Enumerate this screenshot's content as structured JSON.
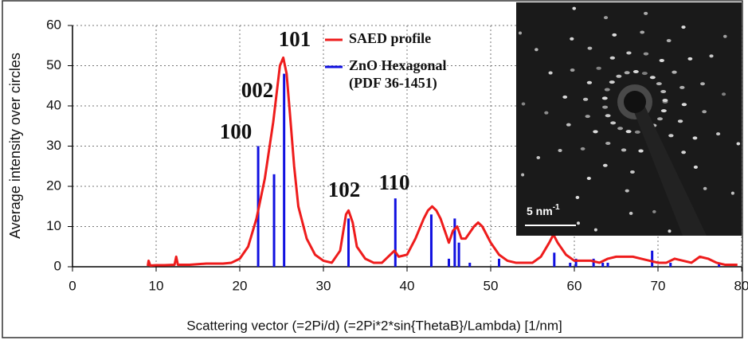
{
  "chart_data": {
    "type": "line",
    "xlabel": "Scattering vector (=2Pi/d) (=2Pi*2*sin{ThetaB}/Lambda) [1/nm]",
    "ylabel": "Average intensity over circles",
    "xlim": [
      0,
      80
    ],
    "xticks": [
      0,
      10,
      20,
      30,
      40,
      50,
      60,
      70,
      80
    ],
    "ylim": [
      0,
      60
    ],
    "yticks": [
      0,
      10,
      20,
      30,
      40,
      50,
      60
    ],
    "grid": true,
    "annotations": [
      "101",
      "002",
      "100",
      "102",
      "110"
    ],
    "inset_scale_label": "5 nm",
    "inset_scale_exponent": "-1",
    "series": [
      {
        "name": "SAED profile",
        "color": "#ee1c1c",
        "type": "line",
        "x": [
          9,
          9.1,
          9.3,
          10,
          11,
          12.2,
          12.4,
          12.6,
          14,
          16,
          18,
          19,
          20,
          21,
          22,
          23,
          24,
          24.8,
          25.2,
          25.6,
          26,
          26.5,
          27,
          28,
          29,
          30,
          31,
          32,
          32.7,
          33,
          33.5,
          34,
          35,
          36,
          37,
          38,
          38.5,
          39,
          40,
          41,
          42,
          42.5,
          43,
          43.5,
          44,
          44.5,
          45,
          45.5,
          46,
          46.5,
          47,
          48,
          48.5,
          49,
          50,
          51,
          52,
          53,
          55,
          56,
          57,
          57.5,
          58,
          59,
          60,
          62,
          63,
          64,
          65,
          66,
          67,
          68,
          69,
          70,
          71,
          72,
          73,
          74,
          75,
          76,
          77,
          78,
          79.5
        ],
        "values": [
          0.2,
          1.5,
          0.3,
          0.4,
          0.4,
          0.5,
          2.5,
          0.5,
          0.5,
          0.8,
          0.8,
          1,
          2,
          5,
          12,
          22,
          36,
          50,
          52,
          48,
          38,
          25,
          15,
          7,
          3,
          1.5,
          1,
          4,
          13,
          14,
          11,
          5,
          2,
          1,
          1,
          3,
          4,
          2.5,
          3,
          7,
          12,
          14,
          15,
          14,
          12,
          9,
          6,
          9,
          10,
          7,
          7,
          10,
          11,
          10,
          6,
          3,
          1.5,
          1,
          1,
          2.5,
          6,
          8,
          6,
          3,
          1.5,
          1.5,
          1,
          2,
          2.5,
          2.5,
          2.5,
          2,
          1.5,
          1,
          1,
          2,
          1.5,
          1,
          2.5,
          2,
          1,
          0.5,
          0.5
        ]
      },
      {
        "name": "ZnO Hexagonal (PDF 36-1451)",
        "color": "#1010e0",
        "type": "bar",
        "x": [
          22.2,
          24.1,
          25.3,
          33.0,
          38.6,
          42.9,
          45.0,
          45.7,
          46.2,
          47.5,
          51.0,
          57.6,
          59.5,
          60.2,
          62.3,
          63.4,
          64.0,
          69.3,
          71.5,
          77.3
        ],
        "values": [
          30,
          23,
          48,
          12,
          17,
          13,
          2,
          12,
          6,
          1,
          2,
          3.5,
          1,
          2,
          2,
          1,
          1,
          4,
          1,
          1
        ]
      }
    ]
  }
}
